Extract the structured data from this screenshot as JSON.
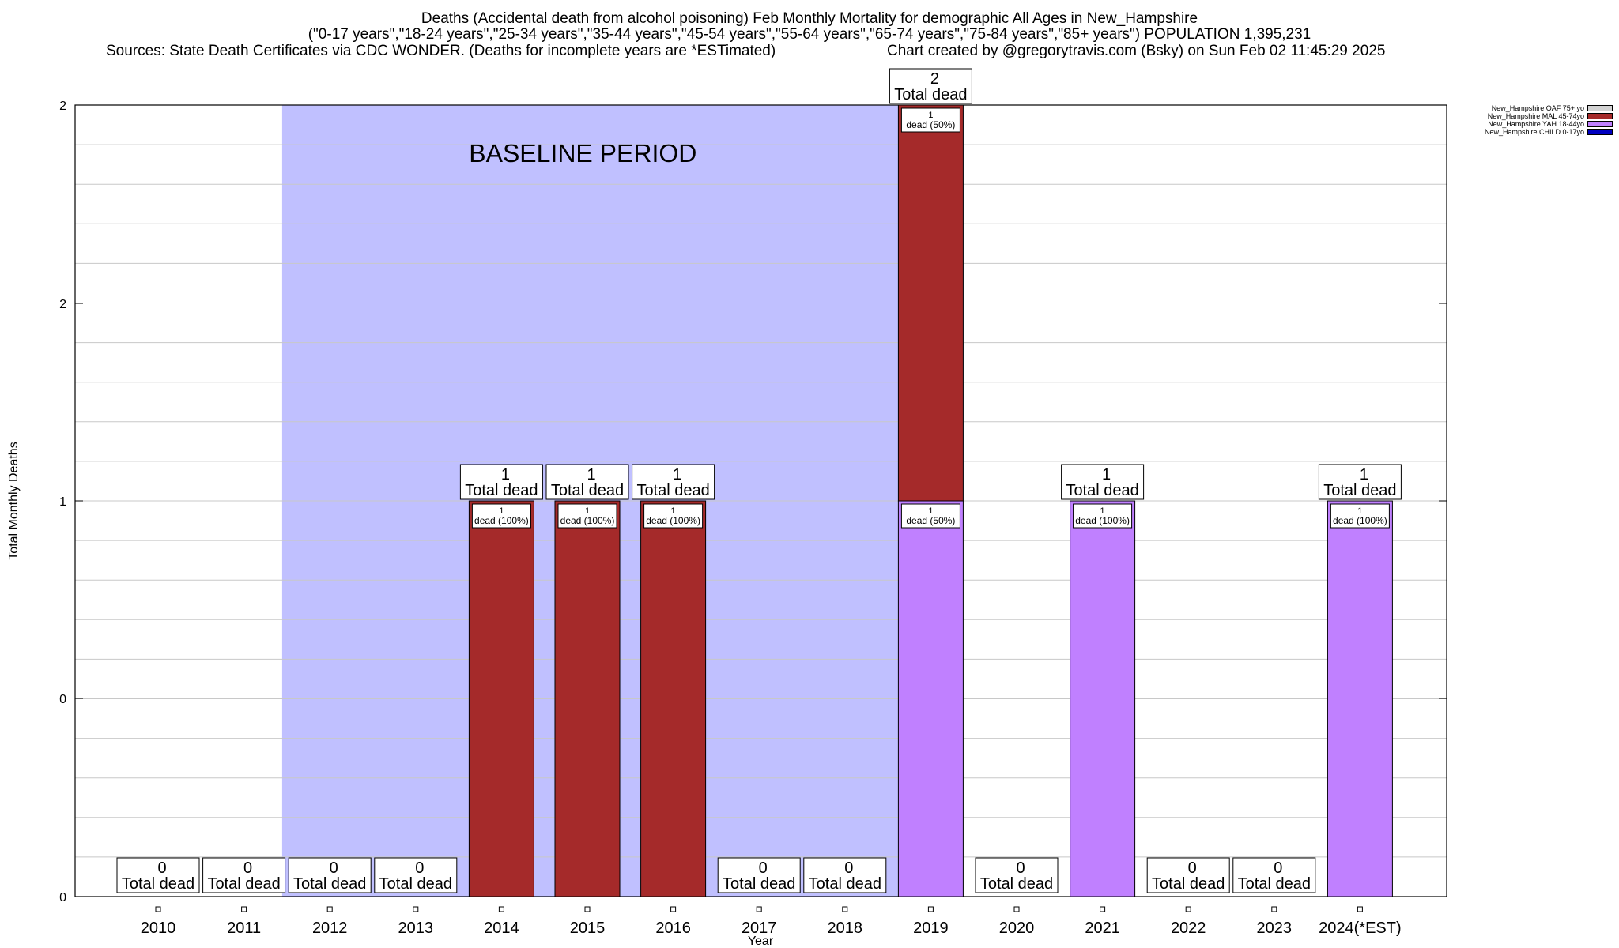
{
  "header": {
    "title_line1": "Deaths (Accidental death from alcohol poisoning) Feb Monthly Mortality for demographic All Ages in New_Hampshire",
    "title_line2": "(\"0-17 years\",\"18-24 years\",\"25-34 years\",\"35-44 years\",\"45-54 years\",\"55-64 years\",\"65-74 years\",\"75-84 years\",\"85+ years\") POPULATION 1,395,231",
    "sources": "Sources: State Death Certificates via CDC WONDER. (Deaths for incomplete years are *ESTimated)",
    "credit": "Chart created by @gregorytravis.com (Bsky) on Sun Feb 02 11:45:29 2025"
  },
  "chart_data": {
    "type": "bar",
    "stacked": true,
    "xlabel": "Year",
    "ylabel": "Total Monthly Deaths",
    "ylim": [
      0,
      2
    ],
    "ytick_labels": [
      "0",
      "0",
      "1",
      "2",
      "2"
    ],
    "grid": true,
    "legend_placement": "top-right",
    "categories": [
      "2010",
      "2011",
      "2012",
      "2013",
      "2014",
      "2015",
      "2016",
      "2017",
      "2018",
      "2019",
      "2020",
      "2021",
      "2022",
      "2023",
      "2024(*EST)"
    ],
    "baseline": {
      "label": "BASELINE PERIOD",
      "from": "2012",
      "to": "2019",
      "color": "#c0c0ff"
    },
    "series": [
      {
        "name": "New_Hampshire OAF 75+ yo",
        "color": "#d3d3d3",
        "values": [
          0,
          0,
          0,
          0,
          0,
          0,
          0,
          0,
          0,
          0,
          0,
          0,
          0,
          0,
          0
        ]
      },
      {
        "name": "New_Hampshire MAL 45-74yo",
        "color": "#a52a2a",
        "values": [
          0,
          0,
          0,
          0,
          1,
          1,
          1,
          0,
          0,
          1,
          0,
          0,
          0,
          0,
          0
        ]
      },
      {
        "name": "New_Hampshire YAH 18-44yo",
        "color": "#c080ff",
        "values": [
          0,
          0,
          0,
          0,
          0,
          0,
          0,
          0,
          0,
          1,
          0,
          1,
          0,
          0,
          1
        ]
      },
      {
        "name": "New_Hampshire CHILD 0-17yo",
        "color": "#0000c0",
        "values": [
          0,
          0,
          0,
          0,
          0,
          0,
          0,
          0,
          0,
          0,
          0,
          0,
          0,
          0,
          0
        ]
      }
    ],
    "totals": [
      0,
      0,
      0,
      0,
      1,
      1,
      1,
      0,
      0,
      2,
      0,
      1,
      0,
      0,
      1
    ],
    "total_label_suffix": "Total dead",
    "segment_label_word": "dead",
    "segment_labels": [
      {
        "year": "2014",
        "count": "1",
        "pct": "(100%)"
      },
      {
        "year": "2015",
        "count": "1",
        "pct": "(100%)"
      },
      {
        "year": "2016",
        "count": "1",
        "pct": "(100%)"
      },
      {
        "year": "2019",
        "count": "1",
        "pct": "(50%)"
      },
      {
        "year": "2019",
        "count": "1",
        "pct": "(50%)"
      },
      {
        "year": "2021",
        "count": "1",
        "pct": "(100%)"
      },
      {
        "year": "2024(*EST)",
        "count": "1",
        "pct": "(100%)"
      }
    ]
  }
}
